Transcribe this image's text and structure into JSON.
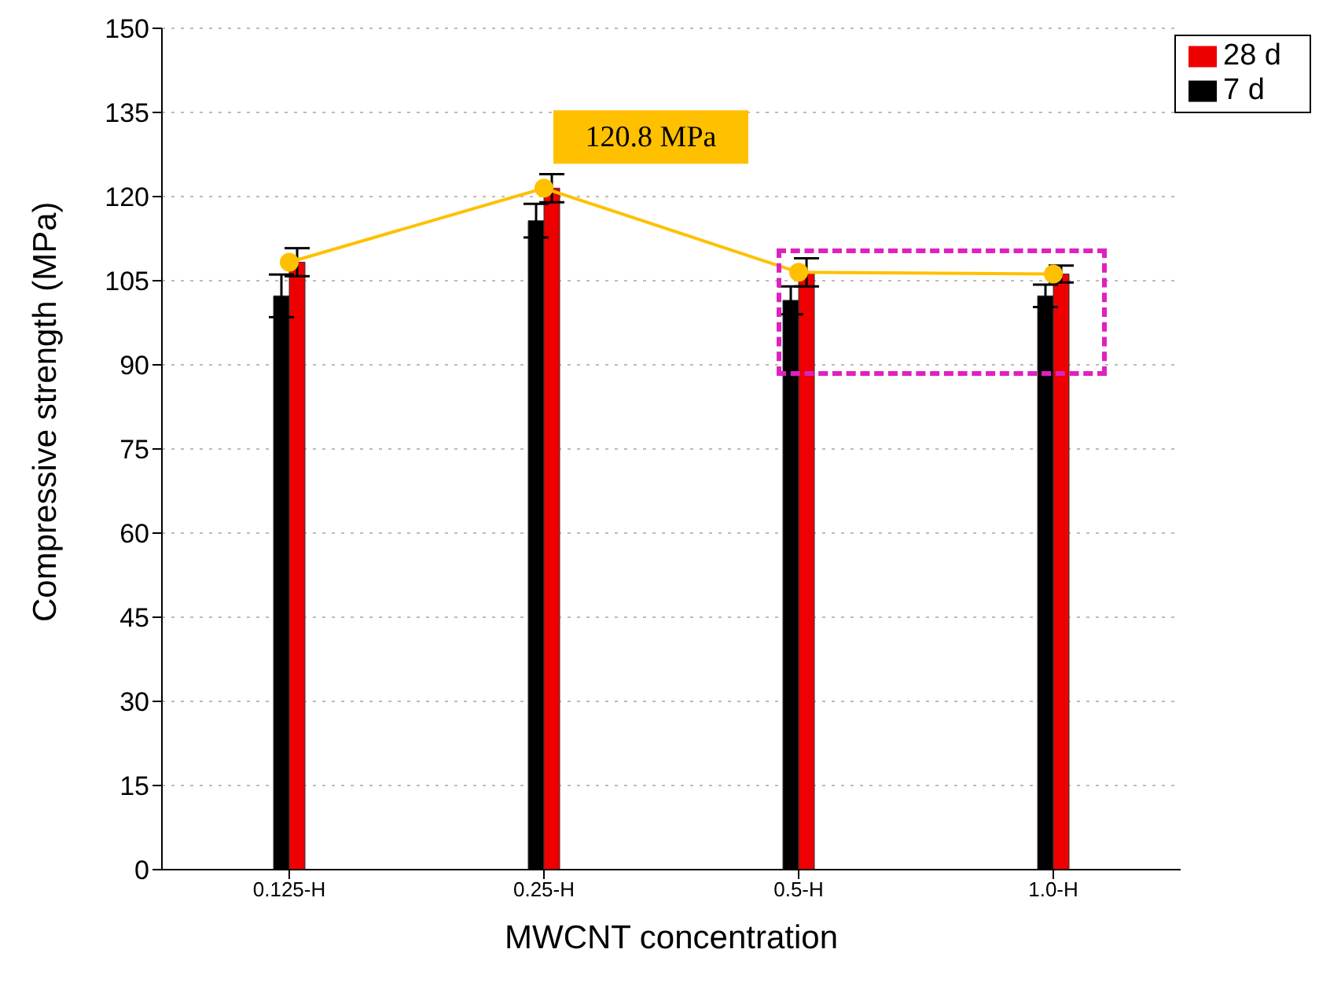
{
  "chart_data": {
    "type": "bar",
    "xlabel": "MWCNT concentration",
    "ylabel": "Compressive strength (MPa)",
    "categories": [
      "0.125-H",
      "0.25-H",
      "0.5-H",
      "1.0-H"
    ],
    "series": [
      {
        "name": "7 d",
        "color": "#000000",
        "values": [
          102.3,
          115.7,
          101.5,
          102.3
        ],
        "errors": [
          3.8,
          3,
          2.5,
          2
        ]
      },
      {
        "name": "28 d",
        "color": "#ee0000",
        "values": [
          108.3,
          121.5,
          106.5,
          106.2
        ],
        "errors": [
          2.5,
          2.5,
          2.5,
          1.5
        ]
      },
      {
        "type": "line",
        "color": "#ffc000",
        "values": [
          108.3,
          121.5,
          106.5,
          106.2
        ],
        "marker": "circle"
      }
    ],
    "annotations": [
      {
        "text": "120.8 MPa",
        "x": "0.25-H",
        "y": 120.8
      }
    ],
    "ylim": [
      0,
      150
    ],
    "yticks": [
      0,
      15,
      30,
      45,
      60,
      75,
      90,
      105,
      120,
      135,
      150
    ],
    "grid": "y",
    "legend": "top right"
  }
}
